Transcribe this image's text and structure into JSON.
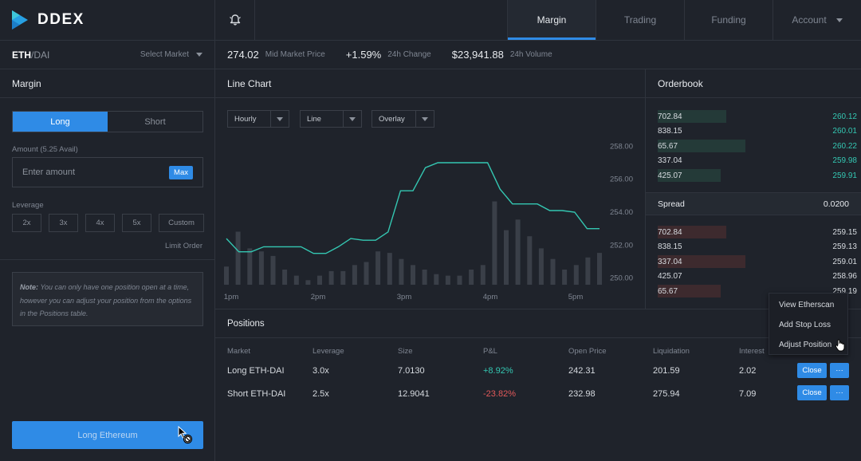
{
  "app": {
    "name": "DDEX"
  },
  "nav": {
    "tabs": [
      {
        "label": "Margin",
        "active": true
      },
      {
        "label": "Trading",
        "active": false
      },
      {
        "label": "Funding",
        "active": false
      },
      {
        "label": "Account",
        "active": false
      }
    ]
  },
  "market": {
    "base": "ETH",
    "quote": "/DAI",
    "select_label": "Select Market"
  },
  "ticker": {
    "mid_price": "274.02",
    "mid_price_label": "Mid Market Price",
    "change": "+1.59%",
    "change_label": "24h Change",
    "volume": "$23,941.88",
    "volume_label": "24h Volume"
  },
  "margin_panel": {
    "title": "Margin",
    "long_label": "Long",
    "short_label": "Short",
    "amount_label": "Amount (5.25 Avail)",
    "amount_placeholder": "Enter amount",
    "max_label": "Max",
    "leverage_label": "Leverage",
    "leverage_options": [
      "2x",
      "3x",
      "4x",
      "5x",
      "Custom"
    ],
    "limit_order_label": "Limit Order",
    "note_title": "Note:",
    "note_text": "You can only have one position open at a time, however you can adjust your position from the options in the Positions table.",
    "submit_label": "Long Ethereum"
  },
  "chart_panel": {
    "title": "Line Chart",
    "dropdowns": [
      "Hourly",
      "Line",
      "Overlay"
    ]
  },
  "chart_data": {
    "type": "line",
    "x_tick_labels": [
      "1pm",
      "2pm",
      "3pm",
      "4pm",
      "5pm"
    ],
    "y_tick_labels": [
      "258.00",
      "256.00",
      "254.00",
      "252.00",
      "250.00"
    ],
    "ylim": [
      249.6,
      258.5
    ],
    "price_series": [
      252.4,
      251.6,
      251.6,
      251.9,
      251.9,
      251.9,
      251.9,
      251.5,
      251.5,
      251.9,
      252.4,
      252.3,
      252.3,
      252.8,
      255.3,
      255.3,
      256.7,
      257.0,
      257.0,
      257.0,
      257.0,
      257.0,
      255.4,
      254.5,
      254.5,
      254.5,
      254.1,
      254.1,
      254.0,
      253.0,
      253.0
    ],
    "volume_series": [
      0.12,
      0.35,
      0.24,
      0.22,
      0.19,
      0.1,
      0.06,
      0.03,
      0.06,
      0.09,
      0.09,
      0.13,
      0.15,
      0.22,
      0.21,
      0.17,
      0.13,
      0.1,
      0.07,
      0.06,
      0.06,
      0.1,
      0.13,
      0.55,
      0.36,
      0.43,
      0.32,
      0.24,
      0.17,
      0.1,
      0.13,
      0.18,
      0.21
    ],
    "grid": false
  },
  "orderbook": {
    "title": "Orderbook",
    "asks": [
      {
        "amount": "702.84",
        "price": "260.12",
        "depth": 0.36
      },
      {
        "amount": "838.15",
        "price": "260.01",
        "depth": 0.0
      },
      {
        "amount": "65.67",
        "price": "260.22",
        "depth": 0.46
      },
      {
        "amount": "337.04",
        "price": "259.98",
        "depth": 0.0
      },
      {
        "amount": "425.07",
        "price": "259.91",
        "depth": 0.33
      }
    ],
    "spread_label": "Spread",
    "spread_value": "0.0200",
    "bids": [
      {
        "amount": "702.84",
        "price": "259.15",
        "depth": 0.36
      },
      {
        "amount": "838.15",
        "price": "259.13",
        "depth": 0.0
      },
      {
        "amount": "337.04",
        "price": "259.01",
        "depth": 0.46
      },
      {
        "amount": "425.07",
        "price": "258.96",
        "depth": 0.0
      },
      {
        "amount": "65.67",
        "price": "259.19",
        "depth": 0.33
      }
    ]
  },
  "positions": {
    "title": "Positions",
    "columns": [
      "Market",
      "Leverage",
      "Size",
      "P&L",
      "Open Price",
      "Liquidation",
      "Interest"
    ],
    "rows": [
      {
        "market": "Long ETH-DAI",
        "leverage": "3.0x",
        "size": "7.0130",
        "pnl": "+8.92%",
        "open_price": "242.31",
        "liquidation": "201.59",
        "interest": "2.02"
      },
      {
        "market": "Short ETH-DAI",
        "leverage": "2.5x",
        "size": "12.9041",
        "pnl": "-23.82%",
        "open_price": "232.98",
        "liquidation": "275.94",
        "interest": "7.09"
      }
    ],
    "close_label": "Close",
    "more_label": "···"
  },
  "context_menu": {
    "items": [
      "View Etherscan",
      "Add Stop Loss",
      "Adjust Position"
    ]
  },
  "colors": {
    "accent": "#2f8be6",
    "positive": "#34c7b2",
    "negative": "#e2595a"
  }
}
